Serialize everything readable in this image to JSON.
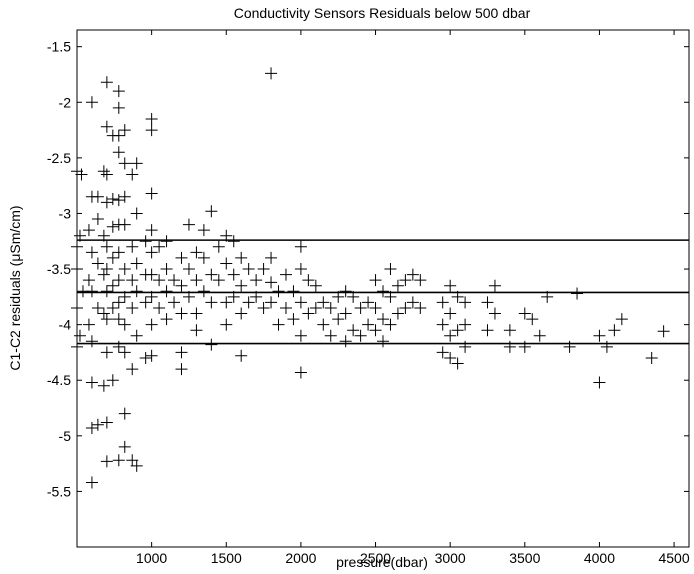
{
  "chart_data": {
    "type": "scatter",
    "title": "Conductivity Sensors Residuals below 500 dbar",
    "xlabel": "pressure(dbar)",
    "ylabel": "C1-C2 residuals (μSm/cm)",
    "xlim": [
      500,
      4600
    ],
    "ylim": [
      -6.0,
      -1.35
    ],
    "xticks": [
      1000,
      1500,
      2000,
      2500,
      3000,
      3500,
      4000,
      4500
    ],
    "yticks": [
      -5.5,
      -5,
      -4.5,
      -4,
      -3.5,
      -3,
      -2.5,
      -2,
      -1.5
    ],
    "xtick_labels": [
      "1000",
      "1500",
      "2000",
      "2500",
      "3000",
      "3500",
      "4000",
      "4500"
    ],
    "ytick_labels": [
      "-5.5",
      "-5",
      "-4.5",
      "-4",
      "-3.5",
      "-3",
      "-2.5",
      "-2",
      "-1.5"
    ],
    "grid": false,
    "marker": "+",
    "reference_lines": [
      -3.24,
      -3.71,
      -4.17
    ],
    "points": [
      [
        500,
        -2.62
      ],
      [
        500,
        -3.3
      ],
      [
        500,
        -3.5
      ],
      [
        500,
        -3.85
      ],
      [
        500,
        -4.2
      ],
      [
        520,
        -3.2
      ],
      [
        520,
        -4.1
      ],
      [
        530,
        -2.65
      ],
      [
        540,
        -3.7
      ],
      [
        580,
        -3.15
      ],
      [
        580,
        -3.6
      ],
      [
        580,
        -4.0
      ],
      [
        600,
        -2.0
      ],
      [
        600,
        -2.85
      ],
      [
        600,
        -3.35
      ],
      [
        600,
        -3.7
      ],
      [
        600,
        -4.15
      ],
      [
        600,
        -4.52
      ],
      [
        600,
        -4.93
      ],
      [
        600,
        -5.42
      ],
      [
        640,
        -2.85
      ],
      [
        640,
        -3.05
      ],
      [
        640,
        -3.45
      ],
      [
        640,
        -3.85
      ],
      [
        640,
        -4.9
      ],
      [
        680,
        -2.62
      ],
      [
        680,
        -3.2
      ],
      [
        680,
        -3.55
      ],
      [
        680,
        -3.9
      ],
      [
        680,
        -4.55
      ],
      [
        700,
        -1.82
      ],
      [
        700,
        -2.22
      ],
      [
        700,
        -2.65
      ],
      [
        700,
        -2.9
      ],
      [
        700,
        -3.3
      ],
      [
        700,
        -3.5
      ],
      [
        700,
        -3.7
      ],
      [
        700,
        -3.95
      ],
      [
        700,
        -4.25
      ],
      [
        700,
        -4.88
      ],
      [
        700,
        -5.23
      ],
      [
        740,
        -2.3
      ],
      [
        740,
        -2.87
      ],
      [
        740,
        -3.12
      ],
      [
        740,
        -3.4
      ],
      [
        740,
        -3.65
      ],
      [
        740,
        -3.85
      ],
      [
        740,
        -4.5
      ],
      [
        780,
        -1.9
      ],
      [
        780,
        -2.05
      ],
      [
        780,
        -2.3
      ],
      [
        780,
        -2.45
      ],
      [
        780,
        -2.88
      ],
      [
        780,
        -3.1
      ],
      [
        780,
        -3.35
      ],
      [
        780,
        -3.6
      ],
      [
        780,
        -3.8
      ],
      [
        780,
        -3.95
      ],
      [
        780,
        -4.2
      ],
      [
        780,
        -5.22
      ],
      [
        820,
        -2.25
      ],
      [
        820,
        -2.55
      ],
      [
        820,
        -2.85
      ],
      [
        820,
        -3.1
      ],
      [
        820,
        -3.5
      ],
      [
        820,
        -3.75
      ],
      [
        820,
        -4.0
      ],
      [
        820,
        -4.25
      ],
      [
        820,
        -4.8
      ],
      [
        820,
        -5.1
      ],
      [
        870,
        -2.65
      ],
      [
        870,
        -3.3
      ],
      [
        870,
        -3.6
      ],
      [
        870,
        -3.85
      ],
      [
        870,
        -4.4
      ],
      [
        870,
        -5.22
      ],
      [
        900,
        -2.55
      ],
      [
        900,
        -3.0
      ],
      [
        900,
        -3.45
      ],
      [
        900,
        -3.7
      ],
      [
        900,
        -4.1
      ],
      [
        900,
        -5.27
      ],
      [
        960,
        -3.25
      ],
      [
        960,
        -3.55
      ],
      [
        960,
        -3.8
      ],
      [
        960,
        -4.3
      ],
      [
        1000,
        -2.15
      ],
      [
        1000,
        -2.25
      ],
      [
        1000,
        -2.82
      ],
      [
        1000,
        -3.15
      ],
      [
        1000,
        -3.35
      ],
      [
        1000,
        -3.55
      ],
      [
        1000,
        -3.75
      ],
      [
        1000,
        -4.0
      ],
      [
        1000,
        -4.28
      ],
      [
        1050,
        -3.3
      ],
      [
        1050,
        -3.6
      ],
      [
        1050,
        -3.85
      ],
      [
        1100,
        -3.25
      ],
      [
        1100,
        -3.5
      ],
      [
        1100,
        -3.7
      ],
      [
        1100,
        -3.95
      ],
      [
        1150,
        -3.6
      ],
      [
        1150,
        -3.8
      ],
      [
        1200,
        -3.4
      ],
      [
        1200,
        -3.65
      ],
      [
        1200,
        -3.9
      ],
      [
        1200,
        -4.25
      ],
      [
        1200,
        -4.4
      ],
      [
        1250,
        -3.1
      ],
      [
        1250,
        -3.5
      ],
      [
        1250,
        -3.75
      ],
      [
        1300,
        -3.35
      ],
      [
        1300,
        -3.6
      ],
      [
        1300,
        -3.9
      ],
      [
        1300,
        -4.05
      ],
      [
        1350,
        -3.15
      ],
      [
        1350,
        -3.4
      ],
      [
        1350,
        -3.7
      ],
      [
        1400,
        -2.98
      ],
      [
        1400,
        -3.55
      ],
      [
        1400,
        -3.8
      ],
      [
        1400,
        -4.18
      ],
      [
        1450,
        -3.3
      ],
      [
        1450,
        -3.6
      ],
      [
        1500,
        -3.2
      ],
      [
        1500,
        -3.45
      ],
      [
        1500,
        -3.8
      ],
      [
        1500,
        -4.0
      ],
      [
        1550,
        -3.25
      ],
      [
        1550,
        -3.55
      ],
      [
        1550,
        -3.75
      ],
      [
        1600,
        -3.4
      ],
      [
        1600,
        -3.65
      ],
      [
        1600,
        -3.9
      ],
      [
        1600,
        -4.28
      ],
      [
        1650,
        -3.5
      ],
      [
        1650,
        -3.8
      ],
      [
        1700,
        -3.6
      ],
      [
        1700,
        -3.75
      ],
      [
        1750,
        -3.5
      ],
      [
        1750,
        -3.85
      ],
      [
        1800,
        -1.74
      ],
      [
        1800,
        -3.4
      ],
      [
        1800,
        -3.62
      ],
      [
        1800,
        -3.8
      ],
      [
        1850,
        -3.7
      ],
      [
        1850,
        -4.0
      ],
      [
        1900,
        -3.55
      ],
      [
        1900,
        -3.85
      ],
      [
        1950,
        -3.7
      ],
      [
        1950,
        -3.95
      ],
      [
        2000,
        -3.3
      ],
      [
        2000,
        -3.5
      ],
      [
        2000,
        -3.8
      ],
      [
        2000,
        -4.1
      ],
      [
        2000,
        -4.43
      ],
      [
        2050,
        -3.6
      ],
      [
        2050,
        -3.9
      ],
      [
        2100,
        -3.65
      ],
      [
        2100,
        -3.85
      ],
      [
        2150,
        -3.8
      ],
      [
        2150,
        -4.0
      ],
      [
        2200,
        -3.85
      ],
      [
        2200,
        -4.1
      ],
      [
        2250,
        -3.75
      ],
      [
        2250,
        -3.95
      ],
      [
        2300,
        -3.7
      ],
      [
        2300,
        -3.9
      ],
      [
        2300,
        -4.15
      ],
      [
        2350,
        -3.75
      ],
      [
        2350,
        -4.05
      ],
      [
        2400,
        -3.85
      ],
      [
        2400,
        -4.1
      ],
      [
        2450,
        -3.8
      ],
      [
        2450,
        -4.0
      ],
      [
        2500,
        -3.6
      ],
      [
        2500,
        -3.85
      ],
      [
        2500,
        -4.05
      ],
      [
        2550,
        -3.7
      ],
      [
        2550,
        -3.95
      ],
      [
        2550,
        -4.15
      ],
      [
        2600,
        -3.5
      ],
      [
        2600,
        -3.75
      ],
      [
        2600,
        -4.0
      ],
      [
        2650,
        -3.65
      ],
      [
        2650,
        -3.9
      ],
      [
        2700,
        -3.6
      ],
      [
        2700,
        -3.85
      ],
      [
        2750,
        -3.55
      ],
      [
        2750,
        -3.8
      ],
      [
        2800,
        -3.6
      ],
      [
        2800,
        -3.85
      ],
      [
        2950,
        -3.8
      ],
      [
        2950,
        -4.0
      ],
      [
        2950,
        -4.25
      ],
      [
        3000,
        -3.65
      ],
      [
        3000,
        -3.9
      ],
      [
        3000,
        -4.1
      ],
      [
        3000,
        -4.3
      ],
      [
        3050,
        -3.75
      ],
      [
        3050,
        -4.05
      ],
      [
        3050,
        -4.35
      ],
      [
        3100,
        -3.8
      ],
      [
        3100,
        -4.0
      ],
      [
        3100,
        -4.2
      ],
      [
        3250,
        -3.8
      ],
      [
        3250,
        -4.05
      ],
      [
        3300,
        -3.65
      ],
      [
        3300,
        -3.9
      ],
      [
        3400,
        -4.05
      ],
      [
        3400,
        -4.2
      ],
      [
        3500,
        -3.9
      ],
      [
        3500,
        -4.2
      ],
      [
        3550,
        -3.95
      ],
      [
        3600,
        -4.1
      ],
      [
        3650,
        -3.75
      ],
      [
        3800,
        -4.2
      ],
      [
        3850,
        -3.72
      ],
      [
        4000,
        -4.1
      ],
      [
        4000,
        -4.52
      ],
      [
        4050,
        -4.2
      ],
      [
        4100,
        -4.05
      ],
      [
        4150,
        -3.95
      ],
      [
        4350,
        -4.3
      ],
      [
        4430,
        -4.06
      ]
    ]
  }
}
